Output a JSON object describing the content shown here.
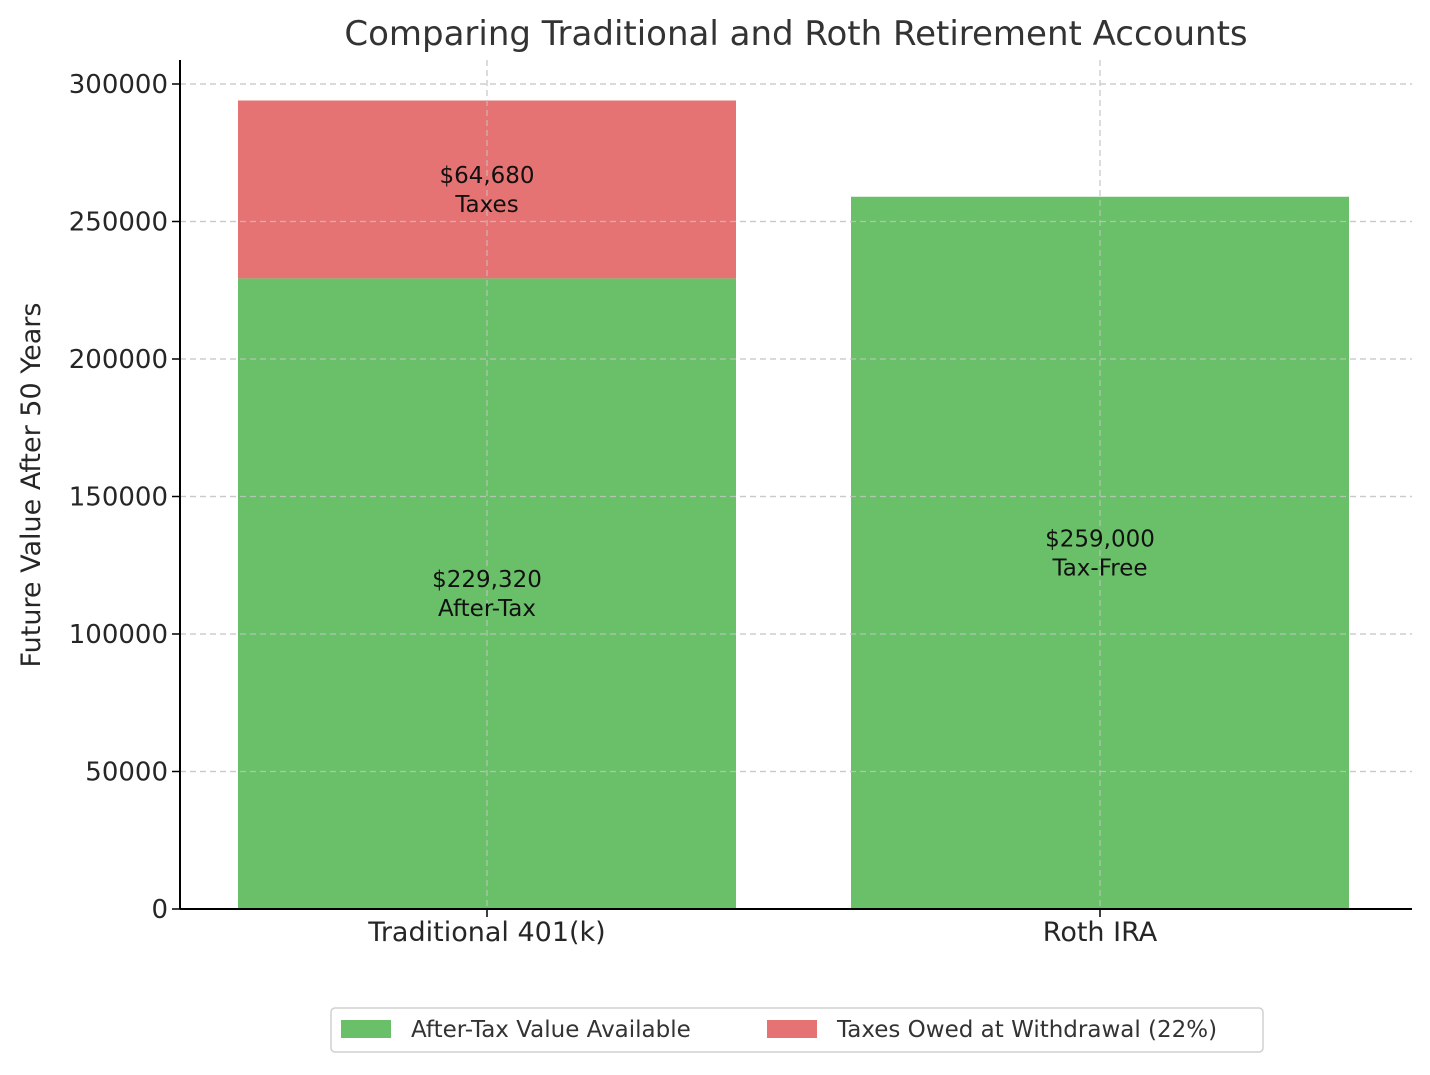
{
  "chart_data": {
    "type": "bar",
    "stacked": true,
    "title": "Comparing Traditional and Roth Retirement Accounts",
    "xlabel": "",
    "ylabel": "Future Value After 50 Years",
    "categories": [
      "Traditional 401(k)",
      "Roth IRA"
    ],
    "series": [
      {
        "name": "After-Tax Value Available",
        "values": [
          229320,
          259000
        ],
        "color": "#6abf69"
      },
      {
        "name": "Taxes Owed at Withdrawal (22%)",
        "values": [
          64680,
          0
        ],
        "color": "#e57373"
      }
    ],
    "bar_labels": [
      {
        "category": 0,
        "series": 0,
        "lines": [
          "$229,320",
          "After-Tax"
        ]
      },
      {
        "category": 0,
        "series": 1,
        "lines": [
          "$64,680",
          "Taxes"
        ]
      },
      {
        "category": 1,
        "series": 0,
        "lines": [
          "$259,000",
          "Tax-Free"
        ]
      }
    ],
    "ylim": [
      0,
      310000
    ],
    "yticks": [
      0,
      50000,
      100000,
      150000,
      200000,
      250000,
      300000
    ],
    "grid": true,
    "legend": "bottom-center"
  }
}
